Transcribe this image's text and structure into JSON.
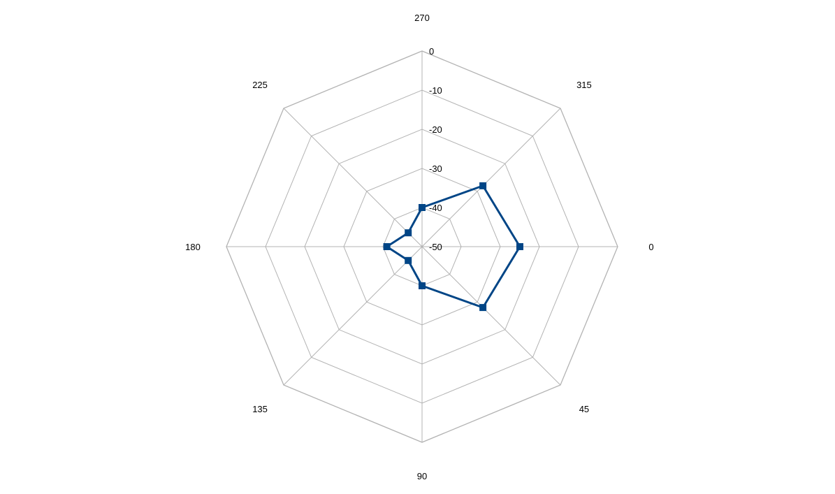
{
  "chart_data": {
    "type": "radar",
    "categories": [
      "0",
      "45",
      "90",
      "135",
      "180",
      "225",
      "270",
      "315"
    ],
    "series": [
      {
        "values": [
          -25,
          -28,
          -40,
          -45,
          -41,
          -45,
          -40,
          -28
        ],
        "color": "#004586"
      }
    ],
    "radial_ticks": [
      "0",
      "-10",
      "-20",
      "-30",
      "-40",
      "-50"
    ],
    "rlim": [
      -50,
      0
    ],
    "grid": true,
    "grid_color": "#b3b3b3",
    "marker": "square"
  }
}
